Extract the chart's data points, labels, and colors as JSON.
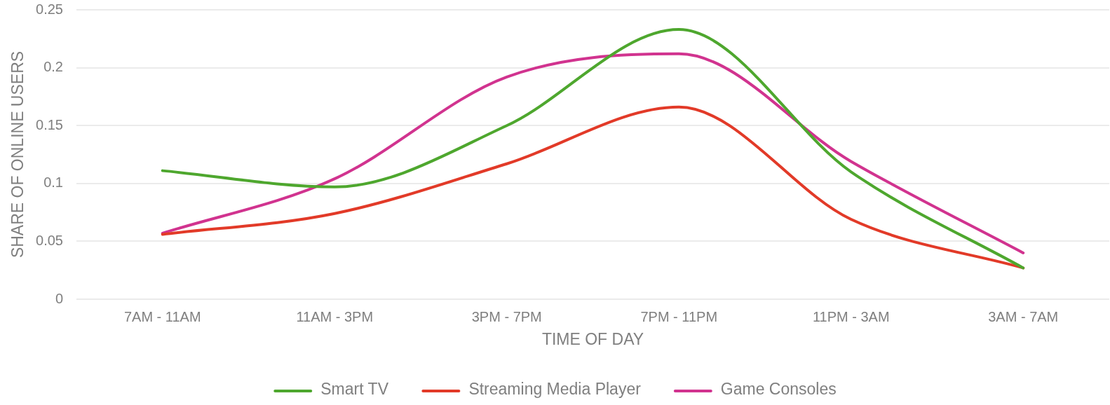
{
  "chart_data": {
    "type": "line",
    "xlabel": "TIME OF DAY",
    "ylabel": "SHARE OF ONLINE USERS",
    "categories": [
      "7AM - 11AM",
      "11AM - 3PM",
      "3PM - 7PM",
      "7PM - 11PM",
      "11PM - 3AM",
      "3AM - 7AM"
    ],
    "series": [
      {
        "name": "Smart TV",
        "color": "#4ea72e",
        "values": [
          0.111,
          0.097,
          0.15,
          0.233,
          0.11,
          0.027
        ]
      },
      {
        "name": "Streaming Media Player",
        "color": "#e23a28",
        "values": [
          0.056,
          0.074,
          0.117,
          0.166,
          0.069,
          0.027
        ]
      },
      {
        "name": "Game Consoles",
        "color": "#d1338f",
        "values": [
          0.057,
          0.104,
          0.192,
          0.212,
          0.119,
          0.04
        ]
      }
    ],
    "ylim": [
      0,
      0.25
    ],
    "yticks": [
      0,
      0.05,
      0.1,
      0.15,
      0.2,
      0.25
    ],
    "grid": "y",
    "legend": "bottom",
    "marker": "none"
  }
}
